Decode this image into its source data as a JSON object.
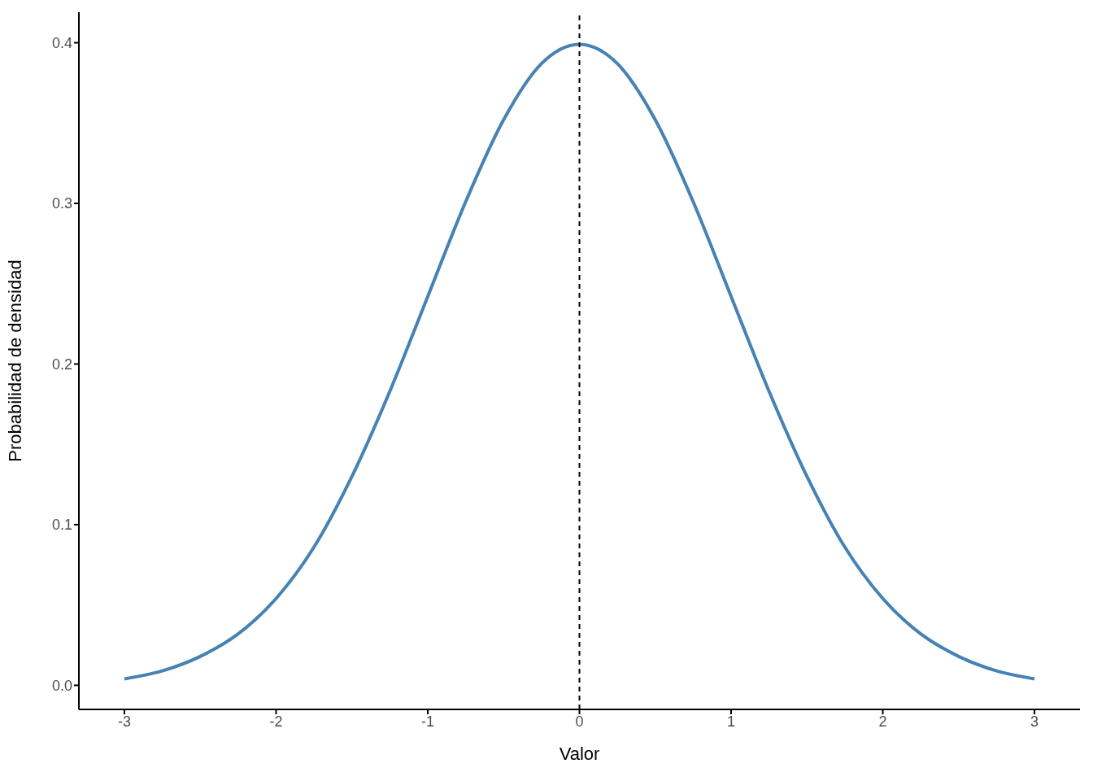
{
  "chart_data": {
    "type": "line",
    "xlabel": "Valor",
    "ylabel": "Probabilidad de densidad",
    "x": [
      -3,
      -2.75,
      -2.5,
      -2.25,
      -2,
      -1.75,
      -1.5,
      -1.25,
      -1,
      -0.75,
      -0.5,
      -0.25,
      0,
      0.25,
      0.5,
      0.75,
      1,
      1.25,
      1.5,
      1.75,
      2,
      2.25,
      2.5,
      2.75,
      3
    ],
    "series": [
      {
        "color": "#4682b4",
        "values": [
          0.004,
          0.009,
          0.018,
          0.032,
          0.054,
          0.086,
          0.13,
          0.183,
          0.242,
          0.301,
          0.352,
          0.387,
          0.399,
          0.387,
          0.352,
          0.301,
          0.242,
          0.183,
          0.13,
          0.086,
          0.054,
          0.032,
          0.018,
          0.009,
          0.004
        ]
      }
    ],
    "xlim": [
      -3.3,
      3.3
    ],
    "xticks": [
      -3,
      -2,
      -1,
      0,
      1,
      2,
      3
    ],
    "ylim": [
      -0.015,
      0.419
    ],
    "yticks": [
      {
        "value": 0,
        "label": "0.0"
      },
      {
        "value": 0.1,
        "label": "0.1"
      },
      {
        "value": 0.2,
        "label": "0.2"
      },
      {
        "value": 0.3,
        "label": "0.3"
      },
      {
        "value": 0.4,
        "label": "0.4"
      }
    ],
    "ref_lines": [
      {
        "axis": "x",
        "value": 0,
        "color": "#000000",
        "line_style": "dashed"
      }
    ]
  }
}
